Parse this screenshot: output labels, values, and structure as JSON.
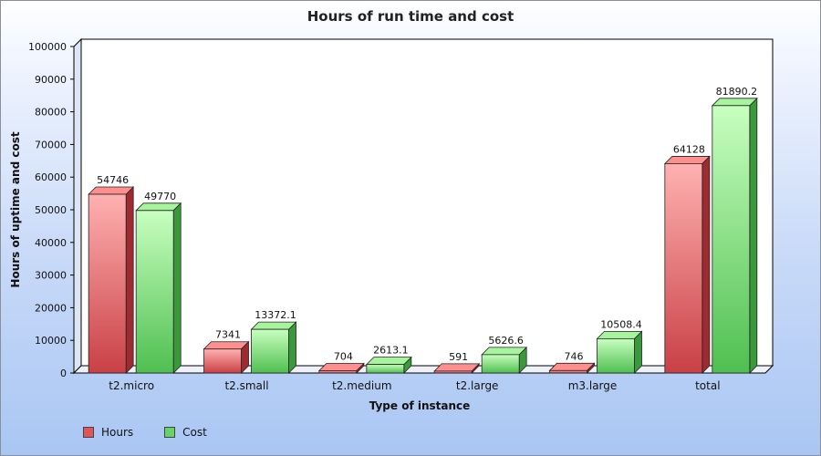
{
  "chart_data": {
    "type": "bar",
    "title": "Hours of run time and cost",
    "xlabel": "Type of instance",
    "ylabel": "Hours of uptime and cost",
    "ylim": [
      0,
      100000
    ],
    "yticks": [
      0,
      10000,
      20000,
      30000,
      40000,
      50000,
      60000,
      70000,
      80000,
      90000,
      100000
    ],
    "categories": [
      "t2.micro",
      "t2.small",
      "t2.medium",
      "t2.large",
      "m3.large",
      "total"
    ],
    "series": [
      {
        "name": "Hours",
        "values": [
          54746,
          7341,
          704,
          591,
          746,
          64128
        ],
        "labels": [
          "54746",
          "7341",
          "704",
          "591",
          "746",
          "64128"
        ],
        "color": "#e0555a"
      },
      {
        "name": "Cost",
        "values": [
          49770,
          13372.1,
          2613.1,
          5626.6,
          10508.4,
          81890.2
        ],
        "labels": [
          "49770",
          "13372.1",
          "2613.1",
          "5626.6",
          "10508.4",
          "81890.2"
        ],
        "color": "#66d466"
      }
    ],
    "legend_position": "bottom-left",
    "grid": false,
    "style": "3d"
  }
}
